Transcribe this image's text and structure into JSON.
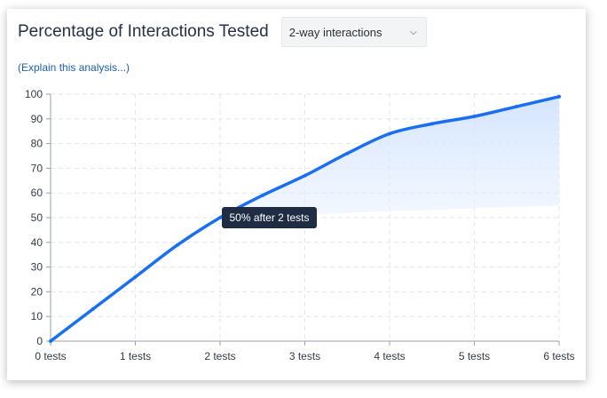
{
  "header": {
    "title": "Percentage of Interactions Tested",
    "select": {
      "value": "2-way interactions",
      "chevron_icon": "chevron-down-icon"
    }
  },
  "explain_link": "(Explain this analysis...)",
  "tooltip": {
    "text": "50% after 2 tests"
  },
  "colors": {
    "line": "#1a6ef0",
    "area": "#d6e6ff",
    "grid": "#e3e6ea",
    "tooltip_bg": "#1e2c44"
  },
  "chart_data": {
    "type": "area",
    "x": [
      0,
      0.5,
      1,
      1.5,
      2,
      2.5,
      3,
      3.5,
      4,
      4.5,
      5,
      5.5,
      6
    ],
    "x_tick_labels": [
      "0 tests",
      "1 tests",
      "2 tests",
      "3 tests",
      "4 tests",
      "5 tests",
      "6 tests"
    ],
    "y_tick_labels": [
      "0",
      "10",
      "20",
      "30",
      "40",
      "50",
      "60",
      "70",
      "80",
      "90",
      "100"
    ],
    "series": [
      {
        "values": [
          0,
          13,
          26,
          39,
          50,
          59,
          67,
          76,
          84,
          88,
          91,
          95,
          99
        ]
      }
    ],
    "ylim": [
      0,
      100
    ],
    "xlim": [
      0,
      6
    ],
    "grid": true,
    "highlight": {
      "x": 2,
      "y": 50
    }
  }
}
